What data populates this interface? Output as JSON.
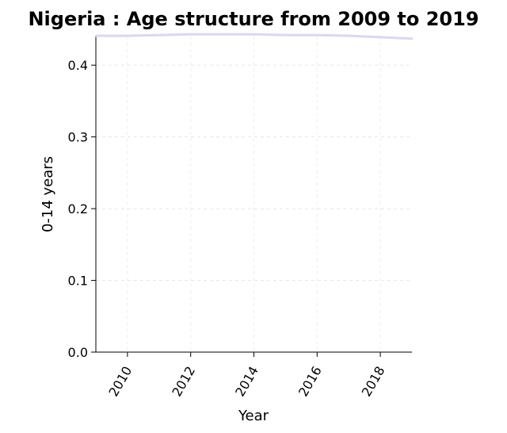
{
  "chart_data": {
    "type": "line",
    "title": "Nigeria : Age structure from 2009 to 2019",
    "xlabel": "Year",
    "ylabel": "0-14 years",
    "xlim": [
      2009,
      2019
    ],
    "ylim": [
      0,
      0.44
    ],
    "x_ticks": [
      2010,
      2012,
      2014,
      2016,
      2018
    ],
    "y_ticks": [
      "0.0",
      "0.1",
      "0.2",
      "0.3",
      "0.4"
    ],
    "grid": true,
    "line_color": "#d8d8f0",
    "series": [
      {
        "x": [
          2009,
          2010,
          2011,
          2012,
          2013,
          2014,
          2015,
          2016,
          2017,
          2018,
          2019
        ],
        "values": [
          0.441,
          0.441,
          0.442,
          0.443,
          0.443,
          0.443,
          0.442,
          0.442,
          0.441,
          0.439,
          0.437
        ]
      }
    ]
  }
}
